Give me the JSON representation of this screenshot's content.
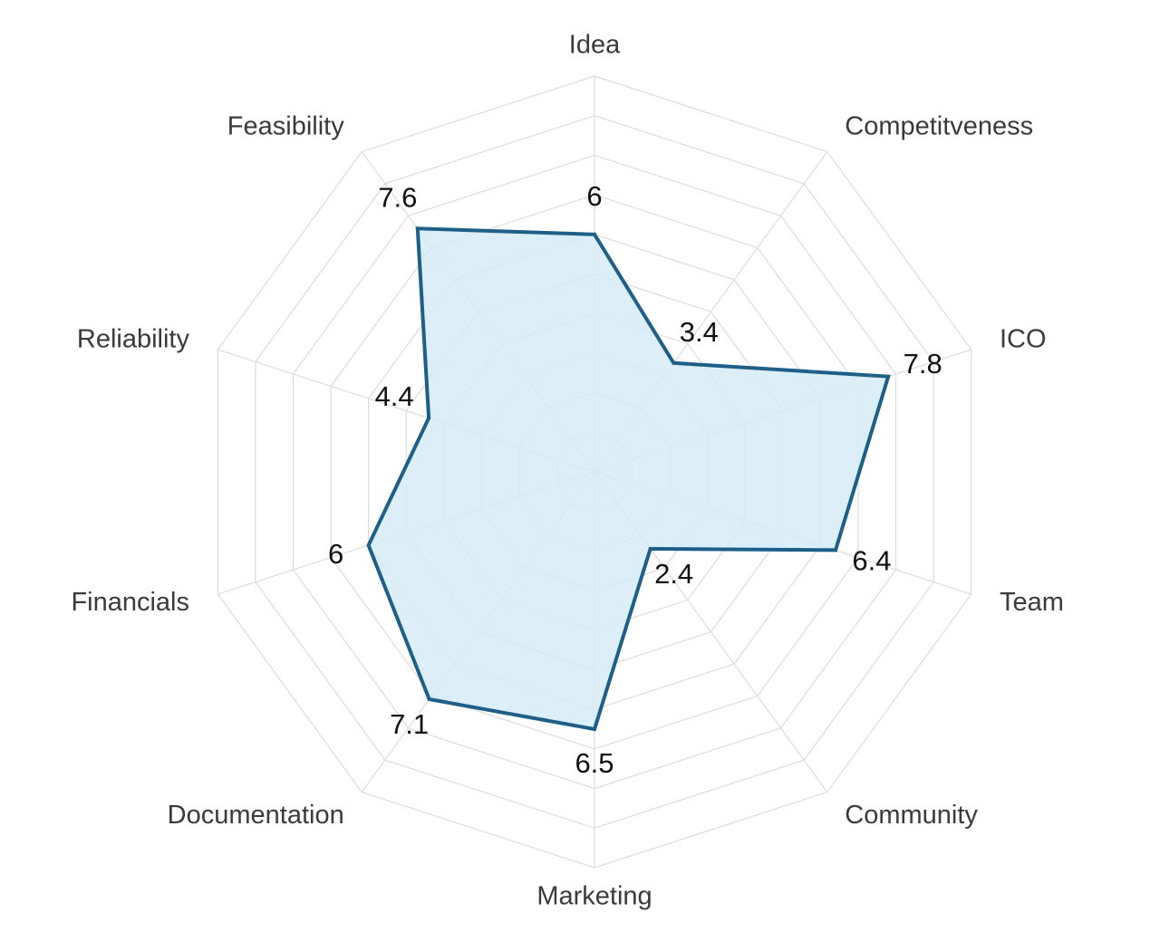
{
  "chart_data": {
    "type": "radar",
    "axes": [
      "Idea",
      "Competitveness",
      "ICO",
      "Team",
      "Community",
      "Marketing",
      "Documentation",
      "Financials",
      "Reliability",
      "Feasibility"
    ],
    "values": [
      6,
      3.4,
      7.8,
      6.4,
      2.4,
      6.5,
      7.1,
      6,
      4.4,
      7.6
    ],
    "value_labels": [
      "6",
      "3.4",
      "7.8",
      "6.4",
      "2.4",
      "6.5",
      "7.1",
      "6",
      "4.4",
      "7.6"
    ],
    "range": [
      0,
      10
    ],
    "grid_levels": 10,
    "grid": true,
    "legend": "none",
    "colors": {
      "line": "#1d5f88",
      "fill": "#d6ebf6",
      "grid": "#dcdcdc",
      "axis_label": "#3a3a3a",
      "value_label": "#111111"
    }
  }
}
